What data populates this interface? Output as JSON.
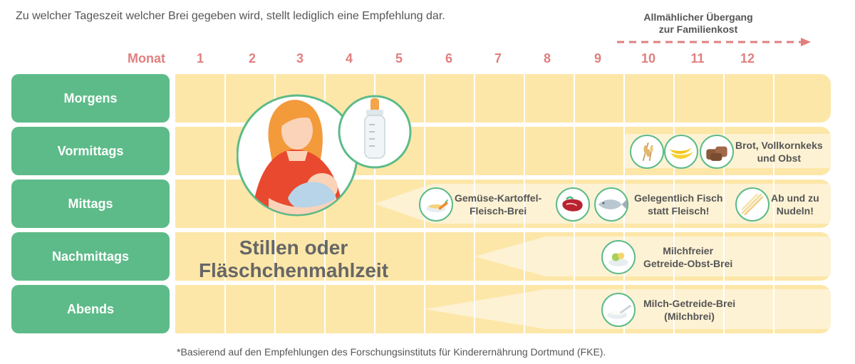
{
  "intro_text": "Zu welcher Tageszeit welcher Brei gegeben wird, stellt lediglich eine Empfehlung dar.",
  "transition": {
    "line1": "Allmählicher Übergang",
    "line2": "zur Familienkost"
  },
  "month_label": "Monat",
  "months": [
    "1",
    "2",
    "3",
    "4",
    "5",
    "6",
    "7",
    "8",
    "9",
    "10",
    "11",
    "12"
  ],
  "rows": [
    "Morgens",
    "Vormittags",
    "Mittags",
    "Nachmittags",
    "Abends"
  ],
  "main_label": {
    "line1": "Stillen oder",
    "line2": "Fläschchenmahlzeit"
  },
  "foods": {
    "vormittags": {
      "line1": "Brot, Vollkornkeks",
      "line2": "und Obst"
    },
    "mittags_veg": {
      "line1": "Gemüse-Kartoffel-",
      "line2": "Fleisch-Brei"
    },
    "mittags_fish": {
      "line1": "Gelegentlich Fisch",
      "line2": "statt Fleisch!"
    },
    "mittags_noodles": {
      "line1": "Ab und zu",
      "line2": "Nudeln!"
    },
    "nachmittags": {
      "line1": "Milchfreier",
      "line2": "Getreide-Obst-Brei"
    },
    "abends": {
      "line1": "Milch-Getreide-Brei",
      "line2": "(Milchbrei)"
    }
  },
  "footnote": "*Basierend auf den Empfehlungen des Forschungsinstituts für Kinderernährung Dortmund (FKE).",
  "colors": {
    "green": "#5dbb89",
    "band": "#fde7a8",
    "band_light": "#fdf2d4",
    "accent": "#e07f7f"
  }
}
